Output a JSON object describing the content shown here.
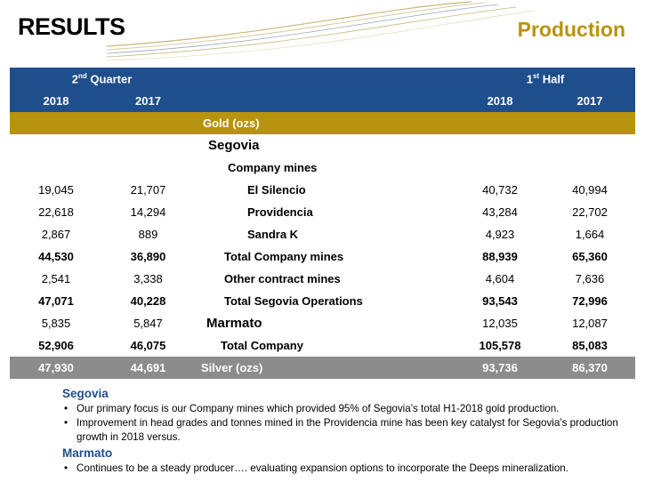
{
  "header": {
    "title": "RESULTS",
    "subtitle": "Production"
  },
  "table": {
    "group_left": {
      "text": "2",
      "sup": "nd",
      "rest": " Quarter"
    },
    "group_right": {
      "text": "1",
      "sup": "st",
      "rest": " Half"
    },
    "years": [
      "2018",
      "2017",
      "2018",
      "2017"
    ],
    "gold_label": "Gold (ozs)",
    "rows": [
      {
        "q18": "",
        "q17": "",
        "name": "Segovia",
        "h18": "",
        "h17": ""
      },
      {
        "q18": "",
        "q17": "",
        "name": "Company mines",
        "h18": "",
        "h17": ""
      },
      {
        "q18": "19,045",
        "q17": "21,707",
        "name": "El Silencio",
        "h18": "40,732",
        "h17": "40,994"
      },
      {
        "q18": "22,618",
        "q17": "14,294",
        "name": "Providencia",
        "h18": "43,284",
        "h17": "22,702"
      },
      {
        "q18": "2,867",
        "q17": "889",
        "name": "Sandra K",
        "h18": "4,923",
        "h17": "1,664"
      },
      {
        "q18": "44,530",
        "q17": "36,890",
        "name": "Total Company mines",
        "h18": "88,939",
        "h17": "65,360"
      },
      {
        "q18": "2,541",
        "q17": "3,338",
        "name": "Other contract mines",
        "h18": "4,604",
        "h17": "7,636"
      },
      {
        "q18": "47,071",
        "q17": "40,228",
        "name": "Total Segovia Operations",
        "h18": "93,543",
        "h17": "72,996"
      },
      {
        "q18": "5,835",
        "q17": "5,847",
        "name": "Marmato",
        "h18": "12,035",
        "h17": "12,087"
      },
      {
        "q18": "52,906",
        "q17": "46,075",
        "name": "Total Company",
        "h18": "105,578",
        "h17": "85,083"
      }
    ],
    "silver": {
      "q18": "47,930",
      "q17": "44,691",
      "name": "Silver (ozs)",
      "h18": "93,736",
      "h17": "86,370"
    }
  },
  "notes": {
    "segovia_heading": "Segovia",
    "segovia_bullets": [
      "Our primary focus is our Company mines which provided 95% of Segovia’s total H1-2018 gold production.",
      "Improvement in head grades and tonnes mined in the Providencia mine has been key catalyst for Segovia’s production growth in 2018 versus."
    ],
    "marmato_heading": "Marmato",
    "marmato_bullets": [
      "Continues to be a steady producer…. evaluating expansion options to incorporate the Deeps mineralization."
    ],
    "bullet_char": "•"
  },
  "colors": {
    "navy": "#1f4e8c",
    "gold": "#b8930f",
    "gray": "#8c8c8c"
  }
}
